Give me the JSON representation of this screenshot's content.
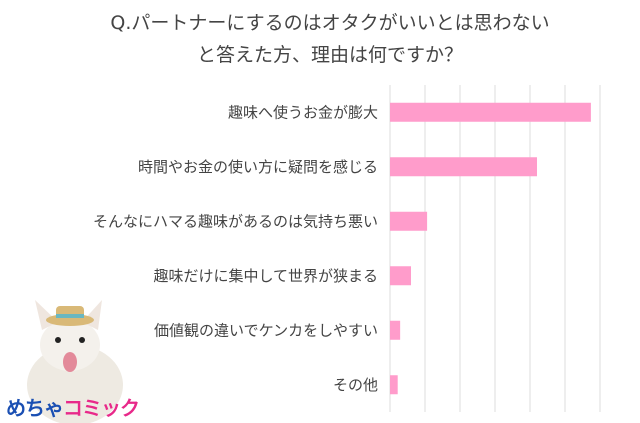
{
  "chart_data": {
    "type": "bar",
    "orientation": "horizontal",
    "title_lines": [
      "Q.パートナーにするのはオタクがいいとは思わない",
      "と答えた方、理由は何ですか？"
    ],
    "categories": [
      "趣味へ使うお金が膨大",
      "時間やお金の使い方に疑問を感じる",
      "そんなにハマる趣味があるのは気持ち悪い",
      "趣味だけに集中して世界が狭まる",
      "価値観の違いでケンカをしやすい",
      "その他"
    ],
    "values": [
      57.4,
      42,
      10.6,
      6,
      2.9,
      2.2
    ],
    "xlim": [
      0,
      60
    ],
    "grid": true,
    "gridline_step": 10,
    "bar_color": "#ff9ccb",
    "grid_color": "#dddddd"
  },
  "logo": {
    "text_a": "めちゃ",
    "text_b": "コミック"
  }
}
